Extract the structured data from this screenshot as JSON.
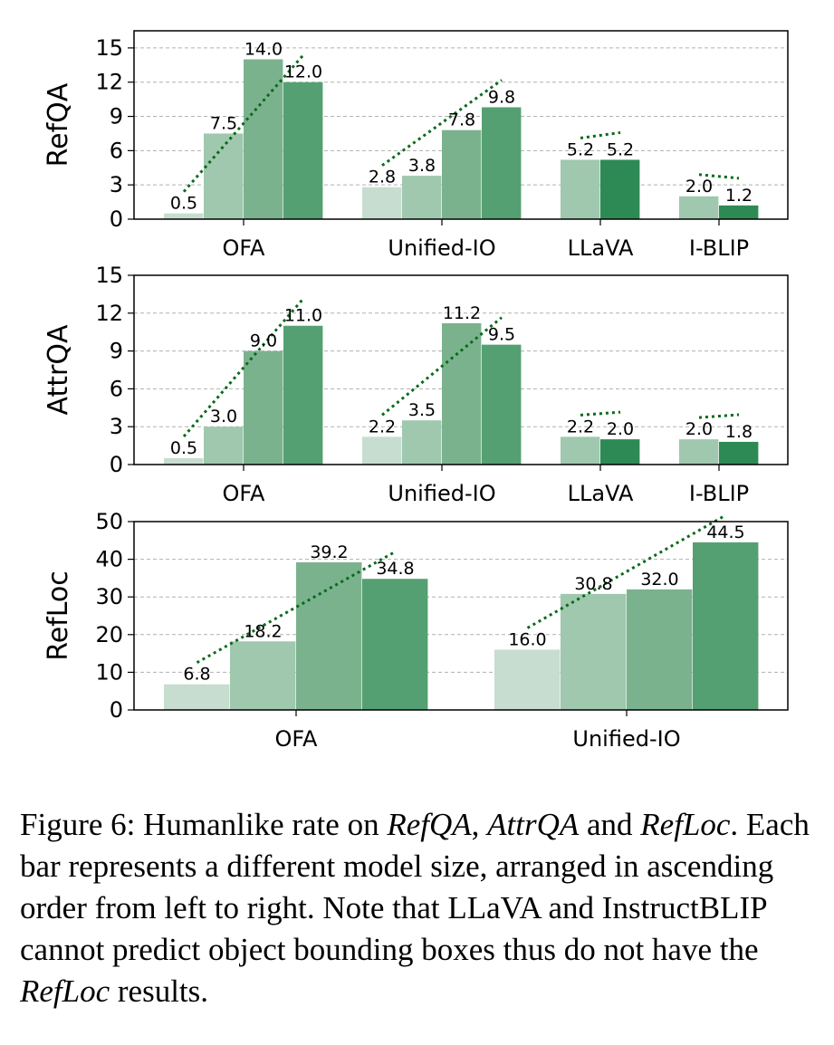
{
  "colors": [
    "#c6ddd0",
    "#9fc8ae",
    "#7bb28e",
    "#55a072",
    "#2e8a55"
  ],
  "trend_color": "#0a6a1a",
  "chart_data": [
    {
      "type": "bar",
      "ylabel": "RefQA",
      "ylim": [
        0,
        16.5
      ],
      "yticks": [
        0,
        3,
        6,
        9,
        12,
        15
      ],
      "grid": true,
      "groups": [
        {
          "name": "OFA",
          "values": [
            0.5,
            7.5,
            14.0,
            12.0
          ],
          "labels": [
            "0.5",
            "7.5",
            "14.0",
            "12.0"
          ],
          "colors": [
            0,
            1,
            2,
            3
          ]
        },
        {
          "name": "Unified-IO",
          "values": [
            2.8,
            3.8,
            7.8,
            9.8
          ],
          "labels": [
            "2.8",
            "3.8",
            "7.8",
            "9.8"
          ],
          "colors": [
            0,
            1,
            2,
            3
          ]
        },
        {
          "name": "LLaVA",
          "values": [
            5.2,
            5.2
          ],
          "labels": [
            "5.2",
            "5.2"
          ],
          "colors": [
            1,
            4
          ]
        },
        {
          "name": "I-BLIP",
          "values": [
            2.0,
            1.2
          ],
          "labels": [
            "2.0",
            "1.2"
          ],
          "colors": [
            1,
            4
          ]
        }
      ]
    },
    {
      "type": "bar",
      "ylabel": "AttrQA",
      "ylim": [
        0,
        15
      ],
      "yticks": [
        0,
        3,
        6,
        9,
        12,
        15
      ],
      "grid": true,
      "groups": [
        {
          "name": "OFA",
          "values": [
            0.5,
            3.0,
            9.0,
            11.0
          ],
          "labels": [
            "0.5",
            "3.0",
            "9.0",
            "11.0"
          ],
          "colors": [
            0,
            1,
            2,
            3
          ]
        },
        {
          "name": "Unified-IO",
          "values": [
            2.2,
            3.5,
            11.2,
            9.5
          ],
          "labels": [
            "2.2",
            "3.5",
            "11.2",
            "9.5"
          ],
          "colors": [
            0,
            1,
            2,
            3
          ]
        },
        {
          "name": "LLaVA",
          "values": [
            2.2,
            2.0
          ],
          "labels": [
            "2.2",
            "2.0"
          ],
          "colors": [
            1,
            4
          ]
        },
        {
          "name": "I-BLIP",
          "values": [
            2.0,
            1.8
          ],
          "labels": [
            "2.0",
            "1.8"
          ],
          "colors": [
            1,
            4
          ]
        }
      ]
    },
    {
      "type": "bar",
      "ylabel": "RefLoc",
      "ylim": [
        0,
        50
      ],
      "yticks": [
        0,
        10,
        20,
        30,
        40,
        50
      ],
      "grid": true,
      "groups": [
        {
          "name": "OFA",
          "values": [
            6.8,
            18.2,
            39.2,
            34.8
          ],
          "labels": [
            "6.8",
            "18.2",
            "39.2",
            "34.8"
          ],
          "colors": [
            0,
            1,
            2,
            3
          ]
        },
        {
          "name": "Unified-IO",
          "values": [
            16.0,
            30.8,
            32.0,
            44.5
          ],
          "labels": [
            "16.0",
            "30.8",
            "32.0",
            "44.5"
          ],
          "colors": [
            0,
            1,
            2,
            3
          ]
        }
      ]
    }
  ],
  "caption": {
    "lead": "Figure 6: Humanlike rate on ",
    "t1": "RefQA",
    "s1": ", ",
    "t2": "AttrQA",
    "s2": " and ",
    "t3": "RefLoc",
    "mid": ". Each bar represents a different model size, arranged in ascending order from left to right. Note that LLaVA and InstructBLIP cannot predict object bounding boxes thus do not have the ",
    "t4": "RefLoc",
    "tail": " results."
  }
}
